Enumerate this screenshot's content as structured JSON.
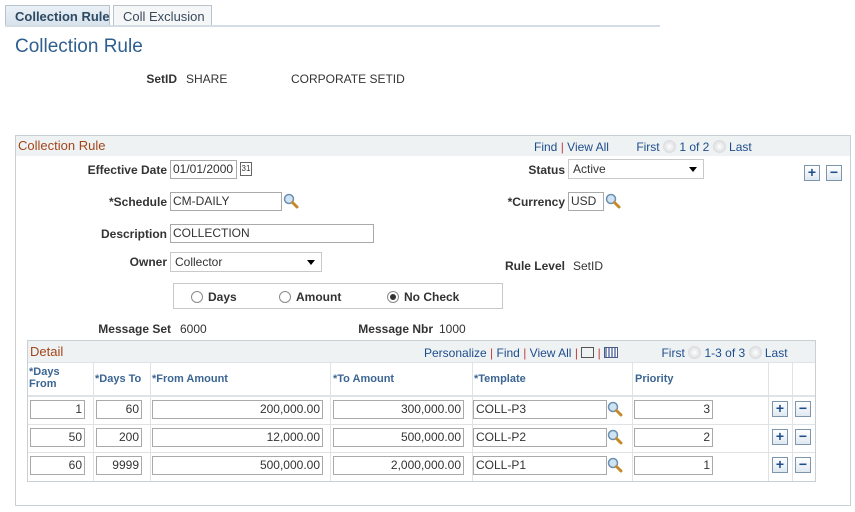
{
  "tabs": [
    {
      "label": "Collection Rule",
      "active": true
    },
    {
      "label": "Coll Exclusion",
      "active": false
    }
  ],
  "page_title": "Collection Rule",
  "setid": {
    "label": "SetID",
    "value": "SHARE",
    "description": "CORPORATE SETID"
  },
  "rule": {
    "section_title": "Collection Rule",
    "nav": {
      "find": "Find",
      "view_all": "View All",
      "first": "First",
      "count": "1 of 2",
      "last": "Last"
    },
    "effective_date": {
      "label": "Effective Date",
      "value": "01/01/2000"
    },
    "status": {
      "label": "Status",
      "value": "Active"
    },
    "schedule": {
      "label": "*Schedule",
      "value": "CM-DAILY"
    },
    "currency": {
      "label": "*Currency",
      "value": "USD"
    },
    "description": {
      "label": "Description",
      "value": "COLLECTION"
    },
    "owner": {
      "label": "Owner",
      "value": "Collector"
    },
    "rule_level": {
      "label": "Rule Level",
      "value": "SetID"
    },
    "radios": [
      {
        "label": "Days",
        "selected": false
      },
      {
        "label": "Amount",
        "selected": false
      },
      {
        "label": "No Check",
        "selected": true
      }
    ],
    "message_set": {
      "label": "Message Set",
      "value": "6000"
    },
    "message_nbr": {
      "label": "Message Nbr",
      "value": "1000"
    }
  },
  "detail": {
    "title": "Detail",
    "nav": {
      "personalize": "Personalize",
      "find": "Find",
      "view_all": "View All",
      "first": "First",
      "count": "1-3 of 3",
      "last": "Last"
    },
    "columns": [
      "*Days From",
      "*Days To",
      "*From Amount",
      "*To Amount",
      "*Template",
      "Priority"
    ],
    "rows": [
      {
        "days_from": "1",
        "days_to": "60",
        "from_amount": "200,000.00",
        "to_amount": "300,000.00",
        "template": "COLL-P3",
        "priority": "3"
      },
      {
        "days_from": "50",
        "days_to": "200",
        "from_amount": "12,000.00",
        "to_amount": "500,000.00",
        "template": "COLL-P2",
        "priority": "2"
      },
      {
        "days_from": "60",
        "days_to": "9999",
        "from_amount": "500,000.00",
        "to_amount": "2,000,000.00",
        "template": "COLL-P1",
        "priority": "1"
      }
    ]
  },
  "colors": {
    "title": "#2e5f8f",
    "section": "#a3461a",
    "link": "#1f4d8c",
    "header": "#3b6592"
  }
}
